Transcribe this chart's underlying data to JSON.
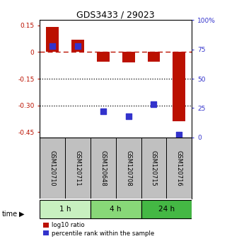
{
  "title": "GDS3433 / 29023",
  "samples": [
    "GSM120710",
    "GSM120711",
    "GSM120648",
    "GSM120708",
    "GSM120715",
    "GSM120716"
  ],
  "log10_ratio": [
    0.14,
    0.07,
    -0.055,
    -0.06,
    -0.055,
    -0.39
  ],
  "percentile_rank": [
    0.78,
    0.78,
    0.22,
    0.18,
    0.28,
    0.02
  ],
  "time_groups": [
    {
      "label": "1 h",
      "start": 0,
      "end": 2,
      "color": "#c8f0c0"
    },
    {
      "label": "4 h",
      "start": 2,
      "end": 4,
      "color": "#88d878"
    },
    {
      "label": "24 h",
      "start": 4,
      "end": 6,
      "color": "#44b844"
    }
  ],
  "ylim_left": [
    -0.48,
    0.18
  ],
  "ylim_right": [
    0,
    1.0
  ],
  "yticks_left": [
    0.15,
    0.0,
    -0.15,
    -0.3,
    -0.45
  ],
  "ytick_labels_left": [
    "0.15",
    "0",
    "-0.15",
    "-0.30",
    "-0.45"
  ],
  "yticks_right": [
    1.0,
    0.75,
    0.5,
    0.25,
    0.0
  ],
  "ytick_labels_right": [
    "100%",
    "75",
    "50",
    "25",
    "0"
  ],
  "bar_color": "#bb1100",
  "dot_color": "#3333cc",
  "dotted_lines": [
    -0.15,
    -0.3
  ],
  "legend_labels": [
    "log10 ratio",
    "percentile rank within the sample"
  ],
  "bar_width": 0.5,
  "dot_size": 40,
  "sample_box_color": "#c0c0c0"
}
